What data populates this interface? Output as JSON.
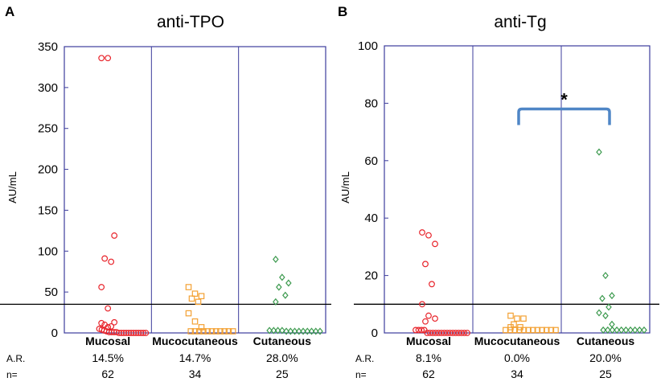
{
  "chart_data": [
    {
      "panel": "A",
      "type": "scatter",
      "title": "anti-TPO",
      "ylabel": "AU/mL",
      "ylim": [
        0,
        350
      ],
      "yticks": [
        0,
        50,
        100,
        150,
        200,
        250,
        300,
        350
      ],
      "categories": [
        "Mucosal",
        "Mucocutaneous",
        "Cutaneous"
      ],
      "cutoff": 35,
      "row_labels": {
        "ar": "A.R.",
        "n": "n="
      },
      "stats": {
        "ar": [
          "14.5%",
          "14.7%",
          "28.0%"
        ],
        "n": [
          "62",
          "34",
          "25"
        ]
      },
      "series": [
        {
          "name": "Mucosal",
          "marker": "circle",
          "color": "#e8242b",
          "values": [
            336,
            336,
            119,
            91,
            87,
            56,
            30,
            13,
            10,
            8,
            12,
            7,
            5,
            4,
            3,
            2,
            1,
            1,
            1,
            1,
            0,
            0,
            0,
            0,
            0,
            0,
            0,
            0,
            0,
            0,
            0,
            0
          ]
        },
        {
          "name": "Mucocutaneous",
          "marker": "square",
          "color": "#f3a133",
          "values": [
            56,
            48,
            45,
            42,
            38,
            24,
            14,
            7,
            2,
            2,
            2,
            2,
            2,
            2,
            2,
            2,
            2,
            2,
            2
          ]
        },
        {
          "name": "Cutaneous",
          "marker": "diamond",
          "color": "#3d9a4f",
          "values": [
            90,
            68,
            61,
            56,
            46,
            38,
            3,
            3,
            3,
            3,
            2,
            2,
            2,
            2,
            2,
            2,
            2,
            2,
            2
          ]
        }
      ]
    },
    {
      "panel": "B",
      "type": "scatter",
      "title": "anti-Tg",
      "ylabel": "AU/mL",
      "ylim": [
        0,
        100
      ],
      "yticks": [
        0,
        20,
        40,
        60,
        80,
        100
      ],
      "categories": [
        "Mucosal",
        "Mucocutaneous",
        "Cutaneous"
      ],
      "cutoff": 10,
      "row_labels": {
        "ar": "A.R.",
        "n": "n="
      },
      "stats": {
        "ar": [
          "8.1%",
          "0.0%",
          "20.0%"
        ],
        "n": [
          "62",
          "34",
          "25"
        ]
      },
      "significance": {
        "label": "*",
        "between": [
          "Mucocutaneous",
          "Cutaneous"
        ],
        "y": 78
      },
      "series": [
        {
          "name": "Mucosal",
          "marker": "circle",
          "color": "#e8242b",
          "values": [
            35,
            34,
            31,
            24,
            17,
            10,
            6,
            5,
            4,
            1,
            1,
            1,
            1,
            0,
            0,
            0,
            0,
            0,
            0,
            0,
            0,
            0,
            0,
            0,
            0,
            0,
            0,
            0
          ]
        },
        {
          "name": "Mucocutaneous",
          "marker": "square",
          "color": "#f3a133",
          "values": [
            6,
            5,
            5,
            3,
            2,
            2,
            1,
            1,
            1,
            1,
            1,
            1,
            1,
            1,
            1,
            1,
            1,
            1
          ]
        },
        {
          "name": "Cutaneous",
          "marker": "diamond",
          "color": "#3d9a4f",
          "values": [
            63,
            20,
            13,
            12,
            9,
            7,
            6,
            3,
            1,
            1,
            1,
            1,
            1,
            1,
            1,
            1,
            1,
            1
          ]
        }
      ]
    }
  ]
}
